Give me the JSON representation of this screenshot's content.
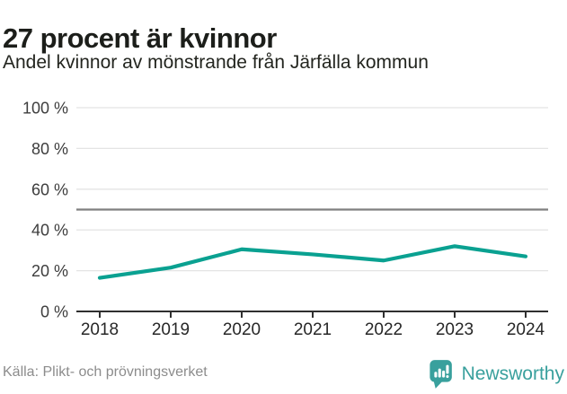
{
  "chart_data": {
    "type": "line",
    "categories": [
      "2018",
      "2019",
      "2020",
      "2021",
      "2022",
      "2023",
      "2024"
    ],
    "series": [
      {
        "name": "Andel kvinnor",
        "values": [
          16.5,
          21.5,
          30.5,
          28,
          25,
          32,
          27
        ]
      }
    ],
    "title": "27 procent är kvinnor",
    "subtitle": "Andel kvinnor av mönstrande från Järfälla kommun",
    "xlabel": "",
    "ylabel": "",
    "ylim": [
      0,
      100
    ],
    "y_ticks": [
      0,
      20,
      40,
      60,
      80,
      100
    ],
    "y_tick_format": "{v} %",
    "reference_line": 50,
    "grid": true,
    "legend": false
  },
  "footer": {
    "source": "Källa: Plikt- och prövningsverket",
    "brand": "Newsworthy",
    "logo_icon": "bar-chart-exclamation-badge"
  },
  "colors": {
    "line": "#0aa191",
    "reference_line": "#7f7f7f",
    "grid": "#e4e4e4",
    "axis": "#2f2f2f",
    "brand_teal": "#39a09d",
    "title_text": "#1c1e1a",
    "muted_text": "#8c8c8c"
  }
}
